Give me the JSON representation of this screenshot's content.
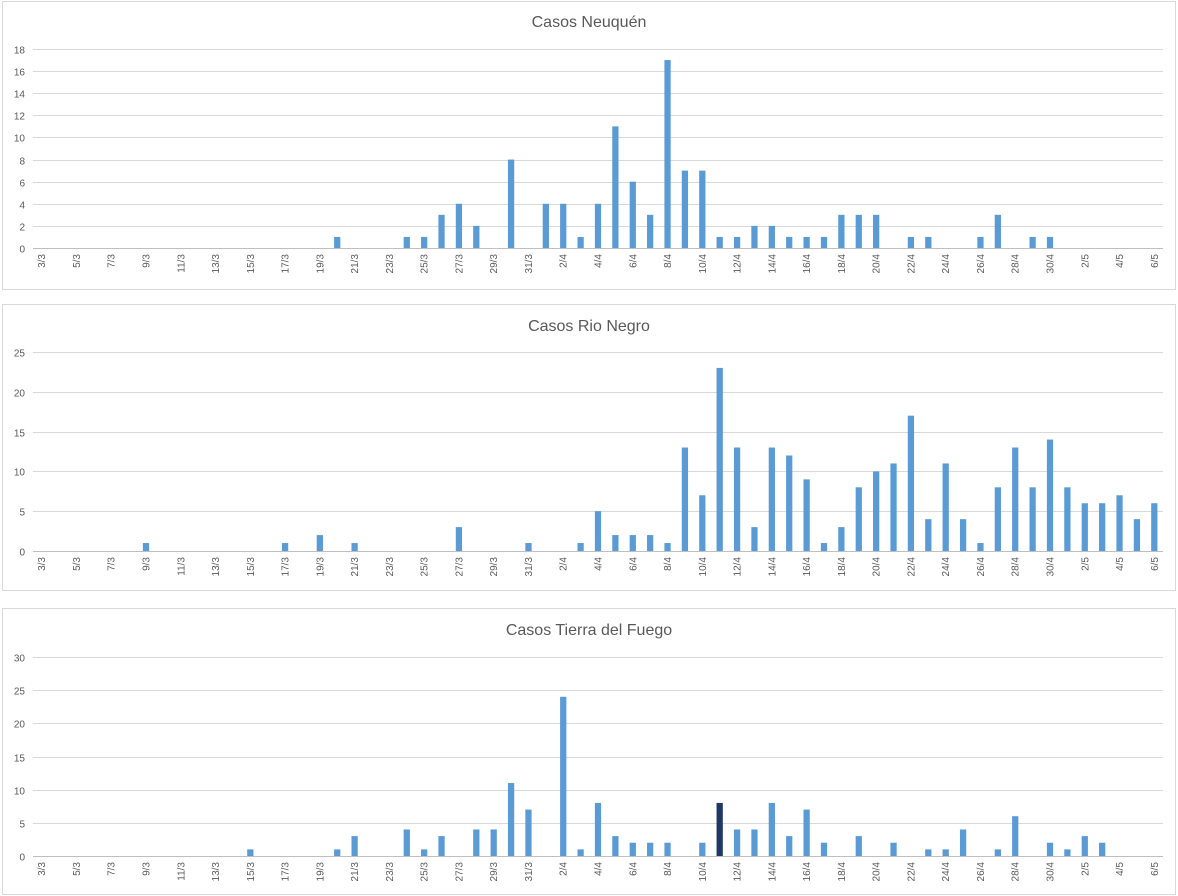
{
  "colors": {
    "bar": "#5b9bd5",
    "highlight": "#1f3864",
    "grid": "#d9d9d9",
    "text": "#595959"
  },
  "x_tick_labels": [
    "3/3",
    "5/3",
    "7/3",
    "9/3",
    "11/3",
    "13/3",
    "15/3",
    "17/3",
    "19/3",
    "21/3",
    "23/3",
    "25/3",
    "27/3",
    "29/3",
    "31/3",
    "2/4",
    "4/4",
    "6/4",
    "8/4",
    "10/4",
    "12/4",
    "14/4",
    "16/4",
    "18/4",
    "20/4",
    "22/4",
    "24/4",
    "26/4",
    "28/4",
    "30/4",
    "2/5",
    "4/5",
    "6/5"
  ],
  "chart_data": [
    {
      "type": "bar",
      "title": "Casos Neuquén",
      "xlabel": "",
      "ylabel": "",
      "ylim": [
        0,
        18
      ],
      "yticks": [
        0,
        2,
        4,
        6,
        8,
        10,
        12,
        14,
        16,
        18
      ],
      "grid": true,
      "categories": [
        "3/3",
        "4/3",
        "5/3",
        "6/3",
        "7/3",
        "8/3",
        "9/3",
        "10/3",
        "11/3",
        "12/3",
        "13/3",
        "14/3",
        "15/3",
        "16/3",
        "17/3",
        "18/3",
        "19/3",
        "20/3",
        "21/3",
        "22/3",
        "23/3",
        "24/3",
        "25/3",
        "26/3",
        "27/3",
        "28/3",
        "29/3",
        "30/3",
        "31/3",
        "1/4",
        "2/4",
        "3/4",
        "4/4",
        "5/4",
        "6/4",
        "7/4",
        "8/4",
        "9/4",
        "10/4",
        "11/4",
        "12/4",
        "13/4",
        "14/4",
        "15/4",
        "16/4",
        "17/4",
        "18/4",
        "19/4",
        "20/4",
        "21/4",
        "22/4",
        "23/4",
        "24/4",
        "25/4",
        "26/4",
        "27/4",
        "28/4",
        "29/4",
        "30/4",
        "1/5",
        "2/5",
        "3/5",
        "4/5",
        "5/5",
        "6/5"
      ],
      "values": [
        0,
        0,
        0,
        0,
        0,
        0,
        0,
        0,
        0,
        0,
        0,
        0,
        0,
        0,
        0,
        0,
        0,
        1,
        0,
        0,
        0,
        1,
        1,
        3,
        4,
        2,
        0,
        8,
        0,
        4,
        4,
        1,
        4,
        11,
        6,
        3,
        17,
        7,
        7,
        1,
        1,
        2,
        2,
        1,
        1,
        1,
        3,
        3,
        3,
        0,
        1,
        1,
        0,
        0,
        1,
        3,
        0,
        1,
        1,
        0,
        0,
        0,
        0,
        0,
        0
      ]
    },
    {
      "type": "bar",
      "title": "Casos Rio Negro",
      "xlabel": "",
      "ylabel": "",
      "ylim": [
        0,
        25
      ],
      "yticks": [
        0,
        5,
        10,
        15,
        20,
        25
      ],
      "grid": true,
      "categories": [
        "3/3",
        "4/3",
        "5/3",
        "6/3",
        "7/3",
        "8/3",
        "9/3",
        "10/3",
        "11/3",
        "12/3",
        "13/3",
        "14/3",
        "15/3",
        "16/3",
        "17/3",
        "18/3",
        "19/3",
        "20/3",
        "21/3",
        "22/3",
        "23/3",
        "24/3",
        "25/3",
        "26/3",
        "27/3",
        "28/3",
        "29/3",
        "30/3",
        "31/3",
        "1/4",
        "2/4",
        "3/4",
        "4/4",
        "5/4",
        "6/4",
        "7/4",
        "8/4",
        "9/4",
        "10/4",
        "11/4",
        "12/4",
        "13/4",
        "14/4",
        "15/4",
        "16/4",
        "17/4",
        "18/4",
        "19/4",
        "20/4",
        "21/4",
        "22/4",
        "23/4",
        "24/4",
        "25/4",
        "26/4",
        "27/4",
        "28/4",
        "29/4",
        "30/4",
        "1/5",
        "2/5",
        "3/5",
        "4/5",
        "5/5",
        "6/5"
      ],
      "values": [
        0,
        0,
        0,
        0,
        0,
        0,
        1,
        0,
        0,
        0,
        0,
        0,
        0,
        0,
        1,
        0,
        2,
        0,
        1,
        0,
        0,
        0,
        0,
        0,
        3,
        0,
        0,
        0,
        1,
        0,
        0,
        1,
        5,
        2,
        2,
        2,
        1,
        13,
        7,
        23,
        13,
        3,
        13,
        12,
        9,
        1,
        3,
        8,
        10,
        11,
        17,
        4,
        11,
        4,
        1,
        8,
        13,
        8,
        14,
        8,
        6,
        6,
        7,
        4,
        6
      ]
    },
    {
      "type": "bar",
      "title": "Casos Tierra del Fuego",
      "xlabel": "",
      "ylabel": "",
      "ylim": [
        0,
        30
      ],
      "yticks": [
        0,
        5,
        10,
        15,
        20,
        25,
        30
      ],
      "grid": true,
      "categories": [
        "3/3",
        "4/3",
        "5/3",
        "6/3",
        "7/3",
        "8/3",
        "9/3",
        "10/3",
        "11/3",
        "12/3",
        "13/3",
        "14/3",
        "15/3",
        "16/3",
        "17/3",
        "18/3",
        "19/3",
        "20/3",
        "21/3",
        "22/3",
        "23/3",
        "24/3",
        "25/3",
        "26/3",
        "27/3",
        "28/3",
        "29/3",
        "30/3",
        "31/3",
        "1/4",
        "2/4",
        "3/4",
        "4/4",
        "5/4",
        "6/4",
        "7/4",
        "8/4",
        "9/4",
        "10/4",
        "11/4",
        "12/4",
        "13/4",
        "14/4",
        "15/4",
        "16/4",
        "17/4",
        "18/4",
        "19/4",
        "20/4",
        "21/4",
        "22/4",
        "23/4",
        "24/4",
        "25/4",
        "26/4",
        "27/4",
        "28/4",
        "29/4",
        "30/4",
        "1/5",
        "2/5",
        "3/5",
        "4/5",
        "5/5",
        "6/5"
      ],
      "values": [
        0,
        0,
        0,
        0,
        0,
        0,
        0,
        0,
        0,
        0,
        0,
        0,
        1,
        0,
        0,
        0,
        0,
        1,
        3,
        0,
        0,
        4,
        1,
        3,
        0,
        4,
        4,
        11,
        7,
        0,
        24,
        1,
        8,
        3,
        2,
        2,
        2,
        0,
        2,
        8,
        4,
        4,
        8,
        3,
        7,
        2,
        0,
        3,
        0,
        2,
        0,
        1,
        1,
        4,
        0,
        1,
        6,
        0,
        2,
        1,
        3,
        2,
        0,
        0,
        0
      ],
      "highlight_category": "11/4"
    }
  ]
}
